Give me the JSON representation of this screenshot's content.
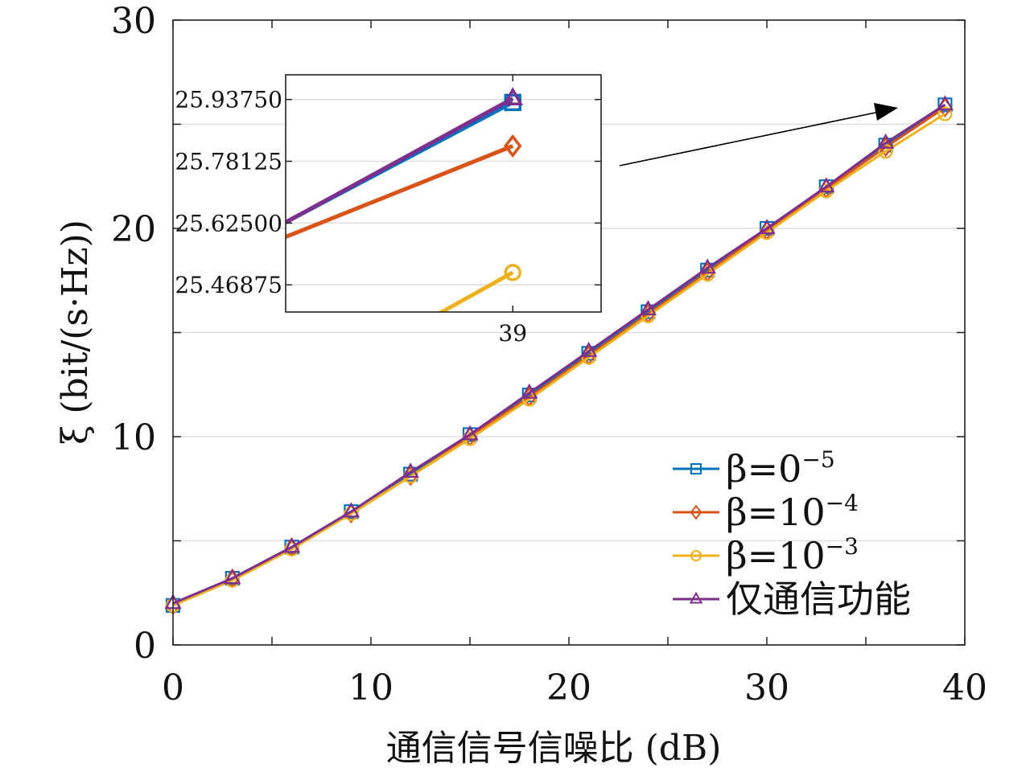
{
  "chart_data": {
    "type": "line",
    "xlabel": "通信信号信噪比 (dB)",
    "ylabel": "ξ (bit/(s·Hz))",
    "xlim": [
      0,
      40
    ],
    "ylim": [
      0,
      30
    ],
    "x_ticks": [
      0,
      10,
      20,
      30,
      40
    ],
    "y_ticks": [
      0,
      10,
      20,
      30
    ],
    "grid": "horizontal",
    "legend_position": "bottom-right",
    "x": [
      0,
      3,
      6,
      9,
      12,
      15,
      18,
      21,
      24,
      27,
      30,
      33,
      36,
      39
    ],
    "series": [
      {
        "name": "β=0^-5",
        "legend": {
          "base": "β=0",
          "sup": "−5"
        },
        "color": "#0072BD",
        "marker": "square",
        "values": [
          1.9,
          3.2,
          4.7,
          6.4,
          8.2,
          10.1,
          12.0,
          14.0,
          16.0,
          18.0,
          20.0,
          22.0,
          24.0,
          25.93
        ]
      },
      {
        "name": "β=10^-4",
        "legend": {
          "base": "β=10",
          "sup": "−4"
        },
        "color": "#D95319",
        "marker": "diamond",
        "values": [
          1.9,
          3.2,
          4.7,
          6.3,
          8.1,
          10.0,
          11.9,
          13.9,
          15.9,
          17.9,
          19.9,
          21.9,
          23.9,
          25.8
        ]
      },
      {
        "name": "β=10^-3",
        "legend": {
          "base": "β=10",
          "sup": "−3"
        },
        "color": "#EDB120",
        "marker": "circle",
        "values": [
          1.9,
          3.1,
          4.6,
          6.3,
          8.1,
          9.9,
          11.8,
          13.8,
          15.8,
          17.8,
          19.8,
          21.8,
          23.7,
          25.5
        ]
      },
      {
        "name": "仅通信功能",
        "legend": {
          "base": "仅通信功能",
          "sup": ""
        },
        "color": "#7E2F8E",
        "marker": "triangle",
        "values": [
          2.0,
          3.2,
          4.7,
          6.4,
          8.3,
          10.1,
          12.1,
          14.1,
          16.1,
          18.1,
          20.0,
          22.0,
          24.1,
          25.94
        ]
      }
    ],
    "inset": {
      "xlim": [
        38.1,
        39.35
      ],
      "ylim": [
        25.4,
        26.0
      ],
      "x_ticks": [
        39
      ],
      "x_tick_labels": [
        "39"
      ],
      "y_ticks": [
        25.46875,
        25.625,
        25.78125,
        25.9375
      ],
      "y_tick_labels": [
        "25.46875",
        "25.62500",
        "25.78125",
        "25.93750"
      ],
      "series_points": [
        {
          "color": "#0072BD",
          "marker": "square",
          "x0": 38.1,
          "y0": 25.627,
          "x1": 39,
          "y1": 25.93
        },
        {
          "color": "#D95319",
          "marker": "diamond",
          "x0": 38.1,
          "y0": 25.59,
          "x1": 39,
          "y1": 25.82
        },
        {
          "color": "#EDB120",
          "marker": "circle",
          "x0": 38.1,
          "y0": 25.18,
          "x1": 39,
          "y1": 25.5
        },
        {
          "color": "#7E2F8E",
          "marker": "triangle",
          "x0": 38.1,
          "y0": 25.627,
          "x1": 39,
          "y1": 25.94
        }
      ]
    }
  }
}
